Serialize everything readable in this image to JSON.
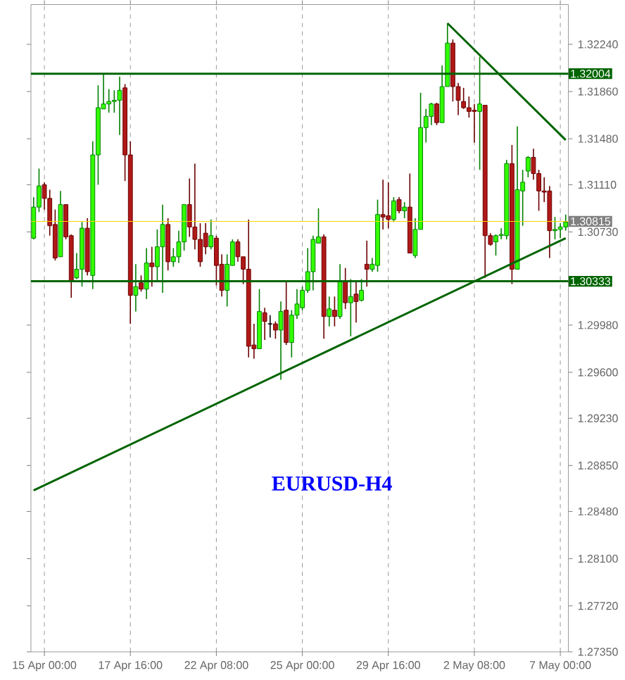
{
  "chart_data": {
    "type": "candlestick",
    "annotations": [
      "EURUSD-H4"
    ],
    "categories": [
      null,
      null,
      "15 Apr 00:00",
      null,
      null,
      null,
      null,
      null,
      null,
      null,
      null,
      null,
      null,
      null,
      null,
      null,
      null,
      null,
      "17 Apr 16:00",
      null,
      null,
      null,
      null,
      null,
      null,
      null,
      null,
      null,
      null,
      null,
      null,
      null,
      null,
      null,
      "22 Apr 08:00",
      null,
      null,
      null,
      null,
      null,
      null,
      null,
      null,
      null,
      null,
      null,
      null,
      null,
      null,
      null,
      "25 Apr 00:00",
      null,
      null,
      null,
      null,
      null,
      null,
      null,
      null,
      null,
      null,
      null,
      null,
      null,
      null,
      null,
      "29 Apr 16:00",
      null,
      null,
      null,
      null,
      null,
      null,
      null,
      null,
      null,
      null,
      null,
      null,
      null,
      null,
      null,
      "2 May 08:00",
      null,
      null,
      null,
      null,
      null,
      null,
      null,
      null,
      null,
      null,
      null,
      null,
      null,
      null,
      null,
      "7 May 00:00",
      null
    ],
    "ohlc": [
      [
        1.3068,
        1.3101,
        1.3067,
        1.3093
      ],
      [
        1.3093,
        1.3124,
        1.3089,
        1.311
      ],
      [
        1.3111,
        1.3113,
        1.3091,
        1.31
      ],
      [
        1.31,
        1.3107,
        1.307,
        1.3078
      ],
      [
        1.3079,
        1.3091,
        1.305,
        1.3052
      ],
      [
        1.3053,
        1.3106,
        1.3053,
        1.3095
      ],
      [
        1.3095,
        1.3095,
        1.3067,
        1.3069
      ],
      [
        1.307,
        1.3071,
        1.302,
        1.3033
      ],
      [
        1.3036,
        1.3056,
        1.3035,
        1.3043
      ],
      [
        1.3043,
        1.3081,
        1.3029,
        1.3076
      ],
      [
        1.3076,
        1.3084,
        1.3038,
        1.3041
      ],
      [
        1.3038,
        1.3146,
        1.3027,
        1.3135
      ],
      [
        1.3135,
        1.3191,
        1.3111,
        1.3173
      ],
      [
        1.3172,
        1.32,
        1.3172,
        1.3176
      ],
      [
        1.3176,
        1.3188,
        1.3169,
        1.3178
      ],
      [
        1.3178,
        1.3187,
        1.3169,
        1.3179
      ],
      [
        1.3179,
        1.3198,
        1.3151,
        1.3187
      ],
      [
        1.3189,
        1.3192,
        1.3114,
        1.3135
      ],
      [
        1.3135,
        1.3146,
        1.2999,
        1.3022
      ],
      [
        1.3022,
        1.3047,
        1.3009,
        1.3029
      ],
      [
        1.3032,
        1.3038,
        1.3025,
        1.3027
      ],
      [
        1.3027,
        1.306,
        1.3019,
        1.3048
      ],
      [
        1.3048,
        1.3061,
        1.3029,
        1.3045
      ],
      [
        1.3045,
        1.3075,
        1.3034,
        1.3061
      ],
      [
        1.3061,
        1.3095,
        1.3024,
        1.3079
      ],
      [
        1.3079,
        1.3084,
        1.3042,
        1.3049
      ],
      [
        1.3049,
        1.306,
        1.3045,
        1.3053
      ],
      [
        1.3053,
        1.3074,
        1.3048,
        1.3065
      ],
      [
        1.3065,
        1.3095,
        1.3058,
        1.3095
      ],
      [
        1.3095,
        1.3116,
        1.3069,
        1.3077
      ],
      [
        1.3077,
        1.3128,
        1.3059,
        1.3067
      ],
      [
        1.3067,
        1.308,
        1.3045,
        1.3049
      ],
      [
        1.3072,
        1.308,
        1.3055,
        1.3061
      ],
      [
        1.3061,
        1.3083,
        1.3059,
        1.307
      ],
      [
        1.3068,
        1.307,
        1.303,
        1.3046
      ],
      [
        1.3047,
        1.3055,
        1.3021,
        1.3026
      ],
      [
        1.3026,
        1.3055,
        1.3013,
        1.3047
      ],
      [
        1.3046,
        1.3067,
        1.3046,
        1.3065
      ],
      [
        1.3065,
        1.3067,
        1.3049,
        1.3053
      ],
      [
        1.3053,
        1.3053,
        1.3031,
        1.3043
      ],
      [
        1.3043,
        1.3083,
        1.2972,
        1.2981
      ],
      [
        1.2982,
        1.2999,
        1.2971,
        1.2979
      ],
      [
        1.2979,
        1.3027,
        1.2979,
        1.3009
      ],
      [
        1.3008,
        1.3012,
        1.2986,
        1.3001
      ],
      [
        1.2999,
        1.3006,
        1.2988,
        1.2999
      ],
      [
        1.2999,
        1.3001,
        1.2987,
        1.2994
      ],
      [
        1.2994,
        1.3017,
        1.2954,
        1.3009
      ],
      [
        1.301,
        1.3033,
        1.2982,
        1.2984
      ],
      [
        1.2984,
        1.301,
        1.2972,
        1.3006
      ],
      [
        1.3006,
        1.3027,
        1.3003,
        1.3015
      ],
      [
        1.3012,
        1.3029,
        1.301,
        1.3026
      ],
      [
        1.3026,
        1.306,
        1.3024,
        1.3041
      ],
      [
        1.3041,
        1.307,
        1.3026,
        1.3067
      ],
      [
        1.3064,
        1.3092,
        1.3064,
        1.3069
      ],
      [
        1.3069,
        1.3071,
        1.2987,
        1.3005
      ],
      [
        1.3005,
        1.3021,
        1.2997,
        1.3011
      ],
      [
        1.301,
        1.3021,
        1.2997,
        1.3005
      ],
      [
        1.3005,
        1.3047,
        1.3003,
        1.3033
      ],
      [
        1.3033,
        1.3044,
        1.3011,
        1.3016
      ],
      [
        1.3016,
        1.3035,
        1.2989,
        1.3021
      ],
      [
        1.3023,
        1.3033,
        1.3,
        1.3017
      ],
      [
        1.3018,
        1.3035,
        1.3017,
        1.3026
      ],
      [
        1.3047,
        1.3066,
        1.3029,
        1.3043
      ],
      [
        1.3043,
        1.3052,
        1.3041,
        1.3047
      ],
      [
        1.3046,
        1.3099,
        1.3041,
        1.3087
      ],
      [
        1.3087,
        1.3115,
        1.3075,
        1.3085
      ],
      [
        1.3086,
        1.3113,
        1.3076,
        1.3083
      ],
      [
        1.3083,
        1.3101,
        1.3081,
        1.3098
      ],
      [
        1.3099,
        1.3101,
        1.3088,
        1.309
      ],
      [
        1.309,
        1.3097,
        1.3084,
        1.3093
      ],
      [
        1.3093,
        1.312,
        1.3056,
        1.3056
      ],
      [
        1.3054,
        1.3084,
        1.3052,
        1.3075
      ],
      [
        1.3075,
        1.3185,
        1.3075,
        1.3157
      ],
      [
        1.3157,
        1.3172,
        1.3145,
        1.3166
      ],
      [
        1.3166,
        1.3177,
        1.3159,
        1.3176
      ],
      [
        1.3176,
        1.3177,
        1.3159,
        1.3161
      ],
      [
        1.3161,
        1.3207,
        1.3161,
        1.319
      ],
      [
        1.319,
        1.3241,
        1.319,
        1.3225
      ],
      [
        1.3225,
        1.3228,
        1.3178,
        1.319
      ],
      [
        1.319,
        1.3193,
        1.3167,
        1.3179
      ],
      [
        1.3178,
        1.3189,
        1.3172,
        1.3173
      ],
      [
        1.3173,
        1.3182,
        1.3165,
        1.317
      ],
      [
        1.3171,
        1.3176,
        1.3145,
        1.317
      ],
      [
        1.317,
        1.3214,
        1.3123,
        1.3176
      ],
      [
        1.3175,
        1.3175,
        1.3036,
        1.307
      ],
      [
        1.307,
        1.3072,
        1.3062,
        1.3063
      ],
      [
        1.3065,
        1.3071,
        1.3054,
        1.307
      ],
      [
        1.307,
        1.3076,
        1.3067,
        1.3071
      ],
      [
        1.307,
        1.3131,
        1.3067,
        1.3128
      ],
      [
        1.3128,
        1.3143,
        1.3031,
        1.3043
      ],
      [
        1.3043,
        1.3158,
        1.3043,
        1.3107
      ],
      [
        1.3106,
        1.3123,
        1.3078,
        1.3113
      ],
      [
        1.3122,
        1.3134,
        1.3117,
        1.3133
      ],
      [
        1.3133,
        1.314,
        1.3115,
        1.312
      ],
      [
        1.312,
        1.3123,
        1.309,
        1.3106
      ],
      [
        1.3106,
        1.3117,
        1.3097,
        1.3105
      ],
      [
        1.3106,
        1.311,
        1.3052,
        1.3074
      ],
      [
        1.3074,
        1.3085,
        1.3067,
        1.3075
      ],
      [
        1.3075,
        1.308,
        1.3068,
        1.3077
      ],
      [
        1.3077,
        1.3087,
        1.3074,
        1.3081
      ]
    ],
    "series": [
      {
        "type": "line",
        "color": "#006400",
        "values": [
          1.2865,
          null,
          null,
          null,
          null,
          null,
          null,
          null,
          null,
          null,
          null,
          null,
          null,
          null,
          null,
          null,
          null,
          null,
          null,
          null,
          null,
          null,
          null,
          null,
          null,
          null,
          null,
          null,
          null,
          null,
          null,
          null,
          null,
          null,
          null,
          null,
          null,
          null,
          null,
          null,
          null,
          null,
          null,
          null,
          null,
          null,
          null,
          null,
          null,
          null,
          null,
          null,
          null,
          null,
          null,
          null,
          null,
          null,
          null,
          null,
          null,
          null,
          null,
          null,
          null,
          null,
          null,
          null,
          null,
          null,
          null,
          null,
          null,
          null,
          null,
          null,
          null,
          null,
          null,
          null,
          null,
          null,
          null,
          null,
          null,
          null,
          null,
          null,
          null,
          null,
          null,
          null,
          null,
          null,
          null,
          null,
          null,
          null,
          null,
          1.3068
        ]
      },
      {
        "type": "line",
        "color": "#006400",
        "values": [
          null,
          null,
          null,
          null,
          null,
          null,
          null,
          null,
          null,
          null,
          null,
          null,
          null,
          null,
          null,
          null,
          null,
          null,
          null,
          null,
          null,
          null,
          null,
          null,
          null,
          null,
          null,
          null,
          null,
          null,
          null,
          null,
          null,
          null,
          null,
          null,
          null,
          null,
          null,
          null,
          null,
          null,
          null,
          null,
          null,
          null,
          null,
          null,
          null,
          null,
          null,
          null,
          null,
          null,
          null,
          null,
          null,
          null,
          null,
          null,
          null,
          null,
          null,
          null,
          null,
          null,
          null,
          null,
          null,
          null,
          null,
          null,
          null,
          null,
          null,
          null,
          null,
          1.3241,
          null,
          null,
          null,
          null,
          null,
          null,
          null,
          null,
          null,
          null,
          null,
          null,
          null,
          null,
          null,
          null,
          null,
          null,
          null,
          null,
          null,
          1.3147
        ]
      }
    ],
    "ref_lines": [
      {
        "axis": "y",
        "value": 1.32004,
        "label": "1.32004",
        "color": "#006400"
      },
      {
        "axis": "y",
        "value": 1.30815,
        "label": "1.30815",
        "color": "#ffd700"
      },
      {
        "axis": "y",
        "value": 1.30333,
        "label": "1.30333",
        "color": "#006400"
      }
    ],
    "ylim": [
      1.2735,
      1.3256
    ],
    "yticks": [
      {
        "value": 1.3224,
        "label": "1.32240"
      },
      {
        "value": 1.3186,
        "label": "1.31860"
      },
      {
        "value": 1.3148,
        "label": "1.31480"
      },
      {
        "value": 1.3111,
        "label": "1.31110"
      },
      {
        "value": 1.3073,
        "label": "1.30730"
      },
      {
        "value": 1.2998,
        "label": "1.29980"
      },
      {
        "value": 1.296,
        "label": "1.29600"
      },
      {
        "value": 1.2923,
        "label": "1.29230"
      },
      {
        "value": 1.2885,
        "label": "1.28850"
      },
      {
        "value": 1.2848,
        "label": "1.28480"
      },
      {
        "value": 1.281,
        "label": "1.28100"
      },
      {
        "value": 1.2772,
        "label": "1.27720"
      },
      {
        "value": 1.2735,
        "label": "1.27350"
      }
    ],
    "grid": "x"
  }
}
